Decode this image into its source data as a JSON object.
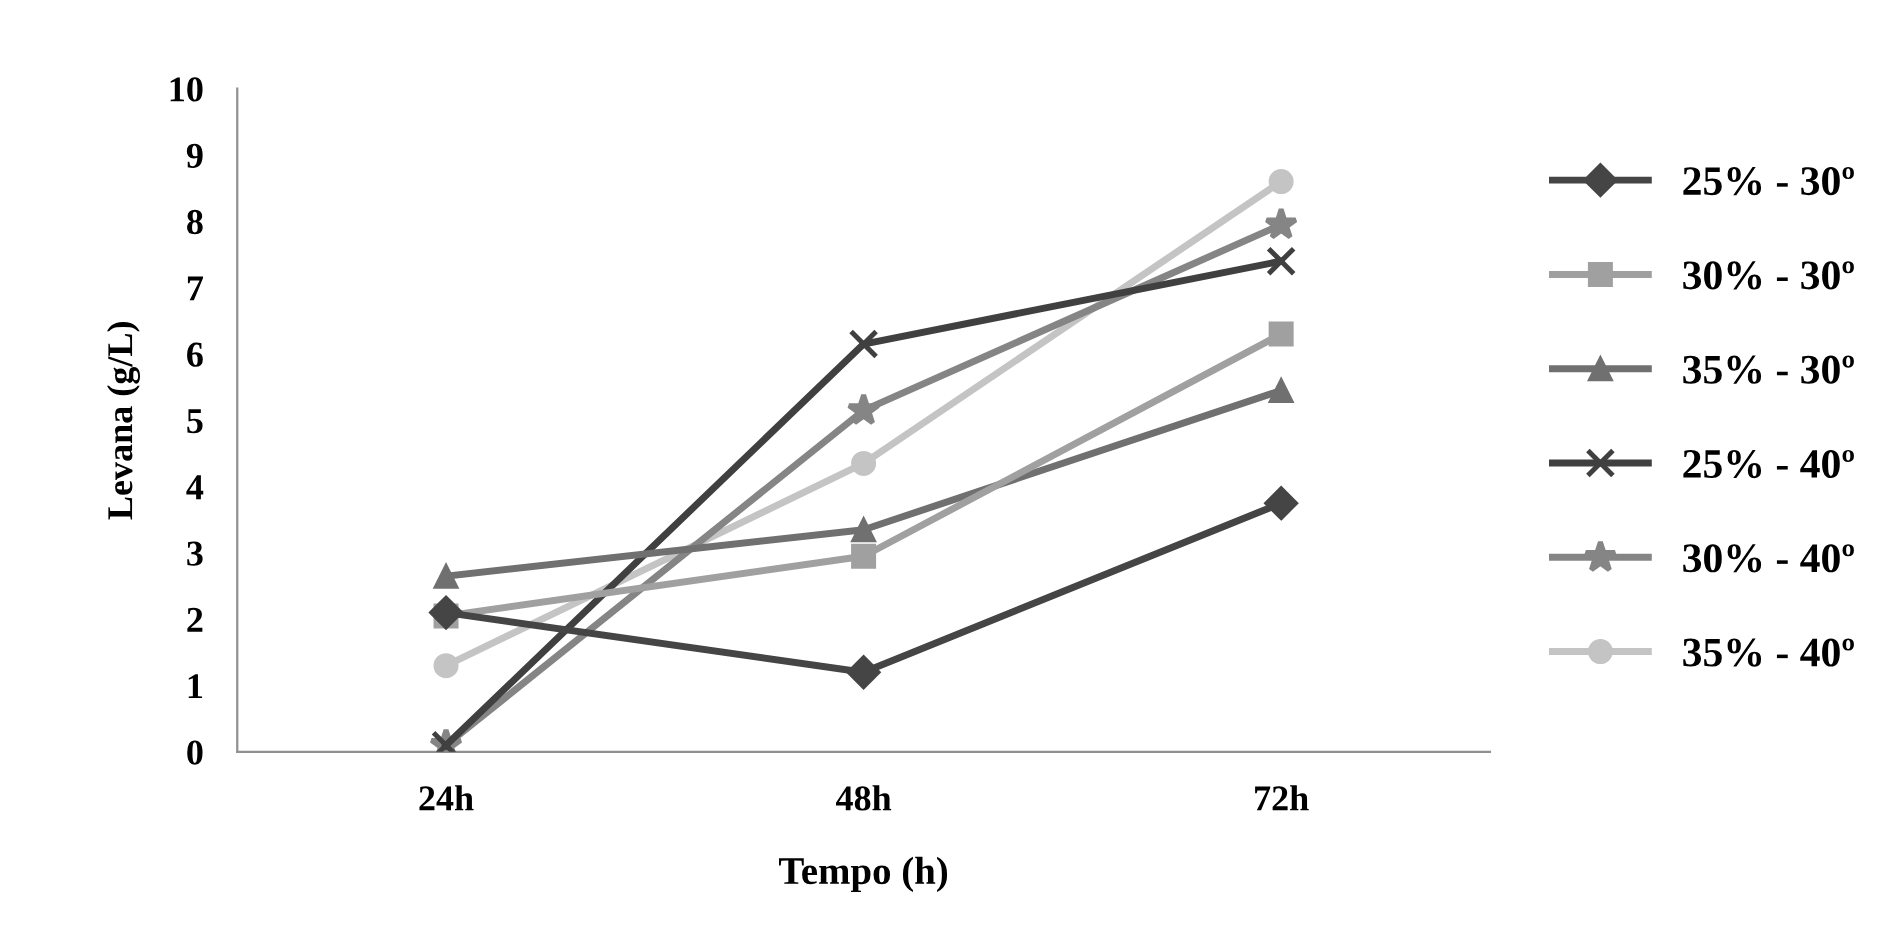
{
  "chart_data": {
    "type": "line",
    "xlabel": "Tempo (h)",
    "ylabel": "Levana (g/L)",
    "categories": [
      "24h",
      "48h",
      "72h"
    ],
    "ylim": [
      0,
      10
    ],
    "yticks": [
      0,
      1,
      2,
      3,
      4,
      5,
      6,
      7,
      8,
      9,
      10
    ],
    "grid": false,
    "legend": "right",
    "series": [
      {
        "name": "25% - 30º",
        "color": "#454545",
        "marker": "diamond",
        "values": [
          2.1,
          1.2,
          3.75
        ]
      },
      {
        "name": "30% - 30º",
        "color": "#a0a0a0",
        "marker": "square",
        "values": [
          2.05,
          2.95,
          6.3
        ]
      },
      {
        "name": "35% - 30º",
        "color": "#707070",
        "marker": "triangle",
        "values": [
          2.65,
          3.35,
          5.45
        ]
      },
      {
        "name": "25% - 40º",
        "color": "#404040",
        "marker": "cross",
        "values": [
          0.1,
          6.15,
          7.4
        ]
      },
      {
        "name": "30% - 40º",
        "color": "#858585",
        "marker": "star",
        "values": [
          0.1,
          5.15,
          7.95
        ]
      },
      {
        "name": "35% - 40º",
        "color": "#c4c4c4",
        "marker": "circle",
        "values": [
          1.3,
          4.35,
          8.6
        ]
      }
    ]
  }
}
